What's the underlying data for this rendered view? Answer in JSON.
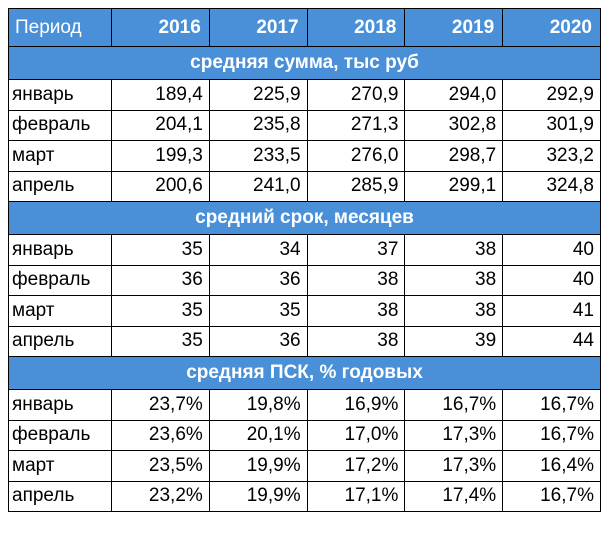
{
  "table": {
    "header_label": "Период",
    "years": [
      "2016",
      "2017",
      "2018",
      "2019",
      "2020"
    ],
    "sections": [
      {
        "title": "средняя сумма, тыс руб",
        "rows": [
          {
            "month": "январь",
            "values": [
              "189,4",
              "225,9",
              "270,9",
              "294,0",
              "292,9"
            ]
          },
          {
            "month": "февраль",
            "values": [
              "204,1",
              "235,8",
              "271,3",
              "302,8",
              "301,9"
            ]
          },
          {
            "month": "март",
            "values": [
              "199,3",
              "233,5",
              "276,0",
              "298,7",
              "323,2"
            ]
          },
          {
            "month": "апрель",
            "values": [
              "200,6",
              "241,0",
              "285,9",
              "299,1",
              "324,8"
            ]
          }
        ]
      },
      {
        "title": "средний срок, месяцев",
        "rows": [
          {
            "month": "январь",
            "values": [
              "35",
              "34",
              "37",
              "38",
              "40"
            ]
          },
          {
            "month": "февраль",
            "values": [
              "36",
              "36",
              "38",
              "38",
              "40"
            ]
          },
          {
            "month": "март",
            "values": [
              "35",
              "35",
              "38",
              "38",
              "41"
            ]
          },
          {
            "month": "апрель",
            "values": [
              "35",
              "36",
              "38",
              "39",
              "44"
            ]
          }
        ]
      },
      {
        "title": "средняя ПСК, % годовых",
        "rows": [
          {
            "month": "январь",
            "values": [
              "23,7%",
              "19,8%",
              "16,9%",
              "16,7%",
              "16,7%"
            ]
          },
          {
            "month": "февраль",
            "values": [
              "23,6%",
              "20,1%",
              "17,0%",
              "17,3%",
              "16,7%"
            ]
          },
          {
            "month": "март",
            "values": [
              "23,5%",
              "19,9%",
              "17,2%",
              "17,3%",
              "16,4%"
            ]
          },
          {
            "month": "апрель",
            "values": [
              "23,2%",
              "19,9%",
              "17,1%",
              "17,4%",
              "16,7%"
            ]
          }
        ]
      }
    ],
    "colors": {
      "header_bg": "#4a90d9",
      "header_text": "#ffffff",
      "border": "#000000"
    }
  }
}
